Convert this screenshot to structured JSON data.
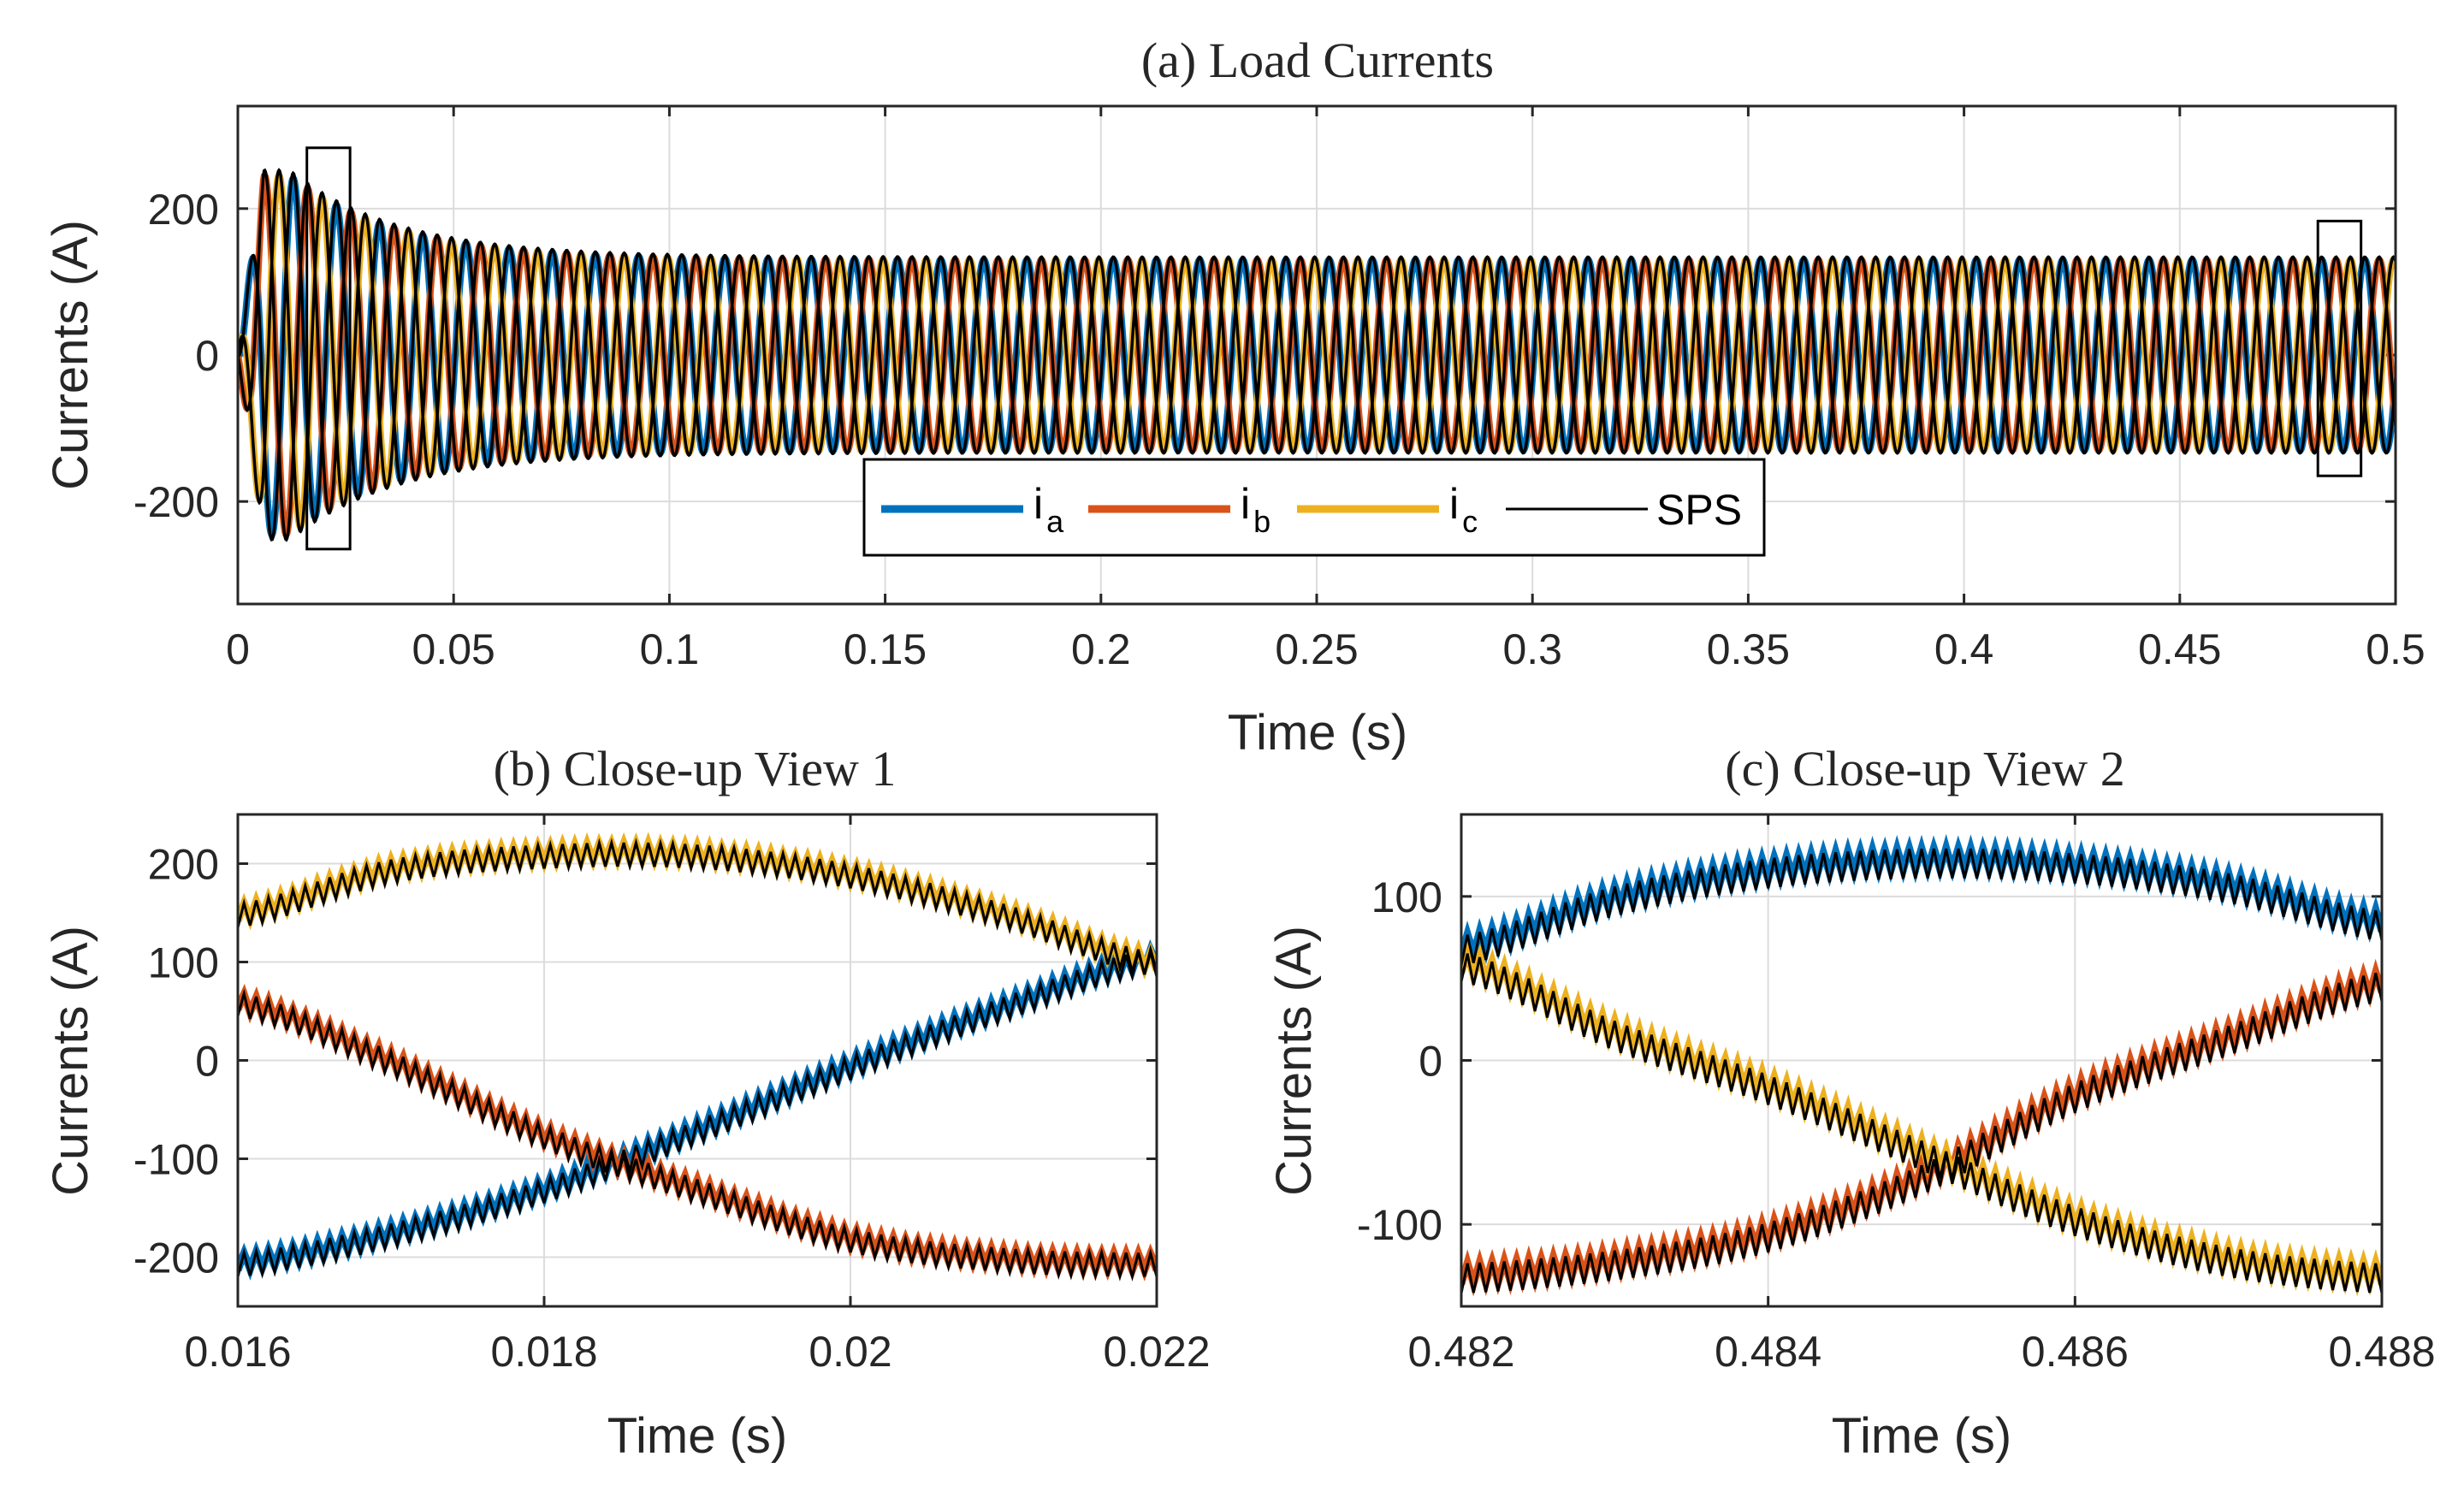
{
  "figure": {
    "colors": {
      "ia": "#0072BD",
      "ib": "#D95319",
      "ic": "#EDB120",
      "sps": "#000000"
    }
  },
  "chart_data": [
    {
      "type": "line",
      "title": "(a) Load Currents",
      "xlabel": "Time (s)",
      "ylabel": "Currents (A)",
      "xlim": [
        0,
        0.5
      ],
      "ylim": [
        -340,
        340
      ],
      "xticks": [
        0,
        0.05,
        0.1,
        0.15,
        0.2,
        0.25,
        0.3,
        0.35,
        0.4,
        0.45,
        0.5
      ],
      "xtick_labels": [
        "0",
        "0.05",
        "0.1",
        "0.15",
        "0.2",
        "0.25",
        "0.3",
        "0.35",
        "0.4",
        "0.45",
        "0.5"
      ],
      "yticks": [
        -200,
        0,
        200
      ],
      "ytick_labels": [
        "-200",
        "0",
        "200"
      ],
      "grid": true,
      "model": {
        "freq_hz": 100,
        "steady_amplitude": 130,
        "transient_peak": 245,
        "transient_tau": 0.025
      },
      "series": [
        {
          "name": "i_a",
          "phase_deg": 0
        },
        {
          "name": "i_b",
          "phase_deg": -120
        },
        {
          "name": "i_c",
          "phase_deg": 120
        },
        {
          "name": "SPS",
          "reference": true
        }
      ],
      "legend": {
        "position": "bottom-center",
        "entries": [
          {
            "main": "i",
            "sub": "a"
          },
          {
            "main": "i",
            "sub": "b"
          },
          {
            "main": "i",
            "sub": "c"
          },
          {
            "main": "SPS",
            "sub": ""
          }
        ]
      },
      "zoom_boxes": [
        {
          "x": [
            0.016,
            0.026
          ],
          "y": [
            -265,
            283
          ]
        },
        {
          "x": [
            0.482,
            0.492
          ],
          "y": [
            -165,
            183
          ]
        }
      ]
    },
    {
      "type": "line",
      "title": "(b) Close-up View 1",
      "xlabel": "Time (s)",
      "ylabel": "Currents (A)",
      "xlim": [
        0.016,
        0.022
      ],
      "ylim": [
        -250,
        250
      ],
      "xticks": [
        0.016,
        0.018,
        0.02,
        0.022
      ],
      "xtick_labels": [
        "0.016",
        "0.018",
        "0.02",
        "0.022"
      ],
      "yticks": [
        -200,
        -100,
        0,
        100,
        200
      ],
      "ytick_labels": [
        "-200",
        "-100",
        "0",
        "100",
        "200"
      ],
      "grid": true,
      "series": [
        {
          "name": "i_a",
          "x": [
            0.016,
            0.017,
            0.018,
            0.019,
            0.02,
            0.021,
            0.022
          ],
          "y": [
            -205,
            -175,
            -130,
            -70,
            -5,
            55,
            105
          ]
        },
        {
          "name": "i_b",
          "x": [
            0.016,
            0.017,
            0.018,
            0.019,
            0.02,
            0.021,
            0.022
          ],
          "y": [
            60,
            0,
            -75,
            -130,
            -180,
            -200,
            -205
          ]
        },
        {
          "name": "i_c",
          "x": [
            0.016,
            0.017,
            0.018,
            0.019,
            0.02,
            0.021,
            0.022
          ],
          "y": [
            150,
            195,
            210,
            210,
            190,
            150,
            100
          ]
        },
        {
          "name": "SPS",
          "reference": true,
          "ripple_amplitude": 12,
          "ripple_cycles": 75
        }
      ]
    },
    {
      "type": "line",
      "title": "(c) Close-up View 2",
      "xlabel": "Time (s)",
      "ylabel": "Currents (A)",
      "xlim": [
        0.482,
        0.488
      ],
      "ylim": [
        -150,
        150
      ],
      "xticks": [
        0.482,
        0.484,
        0.486,
        0.488
      ],
      "xtick_labels": [
        "0.482",
        "0.484",
        "0.486",
        "0.488"
      ],
      "yticks": [
        -100,
        0,
        100
      ],
      "ytick_labels": [
        "-100",
        "0",
        "100"
      ],
      "grid": true,
      "series": [
        {
          "name": "i_a",
          "x": [
            0.482,
            0.483,
            0.484,
            0.485,
            0.486,
            0.487,
            0.488
          ],
          "y": [
            70,
            100,
            117,
            123,
            120,
            108,
            85
          ]
        },
        {
          "name": "i_b",
          "x": [
            0.482,
            0.483,
            0.484,
            0.485,
            0.486,
            0.487,
            0.488
          ],
          "y": [
            -130,
            -122,
            -105,
            -70,
            -20,
            15,
            48
          ]
        },
        {
          "name": "i_c",
          "x": [
            0.482,
            0.483,
            0.484,
            0.485,
            0.486,
            0.487,
            0.488
          ],
          "y": [
            60,
            18,
            -15,
            -55,
            -95,
            -120,
            -130
          ]
        },
        {
          "name": "SPS",
          "reference": true,
          "ripple_amplitude": 9,
          "ripple_cycles": 75
        }
      ]
    }
  ]
}
